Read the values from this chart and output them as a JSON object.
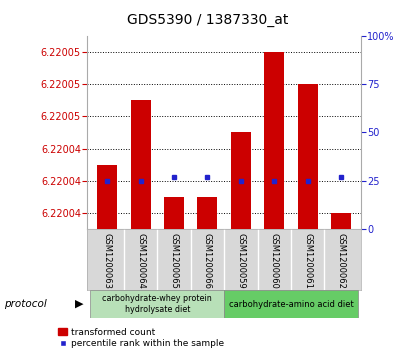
{
  "title": "GDS5390 / 1387330_at",
  "samples": [
    "GSM1200063",
    "GSM1200064",
    "GSM1200065",
    "GSM1200066",
    "GSM1200059",
    "GSM1200060",
    "GSM1200061",
    "GSM1200062"
  ],
  "transformed_count": [
    6.220043,
    6.220047,
    6.220041,
    6.220041,
    6.220045,
    6.22005,
    6.220048,
    6.22004
  ],
  "percentile_rank": [
    25,
    25,
    27,
    27,
    25,
    25,
    25,
    27
  ],
  "ylim_left": [
    6.220039,
    6.220051
  ],
  "ylim_right": [
    0,
    100
  ],
  "yticks_left": [
    6.22004,
    6.220042,
    6.220044,
    6.220046,
    6.220048,
    6.22005
  ],
  "yticks_right": [
    0,
    25,
    50,
    75,
    100
  ],
  "bar_color": "#cc0000",
  "blue_color": "#2222cc",
  "group1_label": "carbohydrate-whey protein\nhydrolysate diet",
  "group2_label": "carbohydrate-amino acid diet",
  "group1_indices": [
    0,
    1,
    2,
    3
  ],
  "group2_indices": [
    4,
    5,
    6,
    7
  ],
  "group1_color": "#b8e0b8",
  "group2_color": "#66cc66",
  "protocol_label": "protocol",
  "legend_red": "transformed count",
  "legend_blue": "percentile rank within the sample",
  "bg_gray": "#d8d8d8",
  "dotted_line_color": "#000000",
  "title_fontsize": 10,
  "tick_fontsize": 7,
  "bar_width": 0.6
}
